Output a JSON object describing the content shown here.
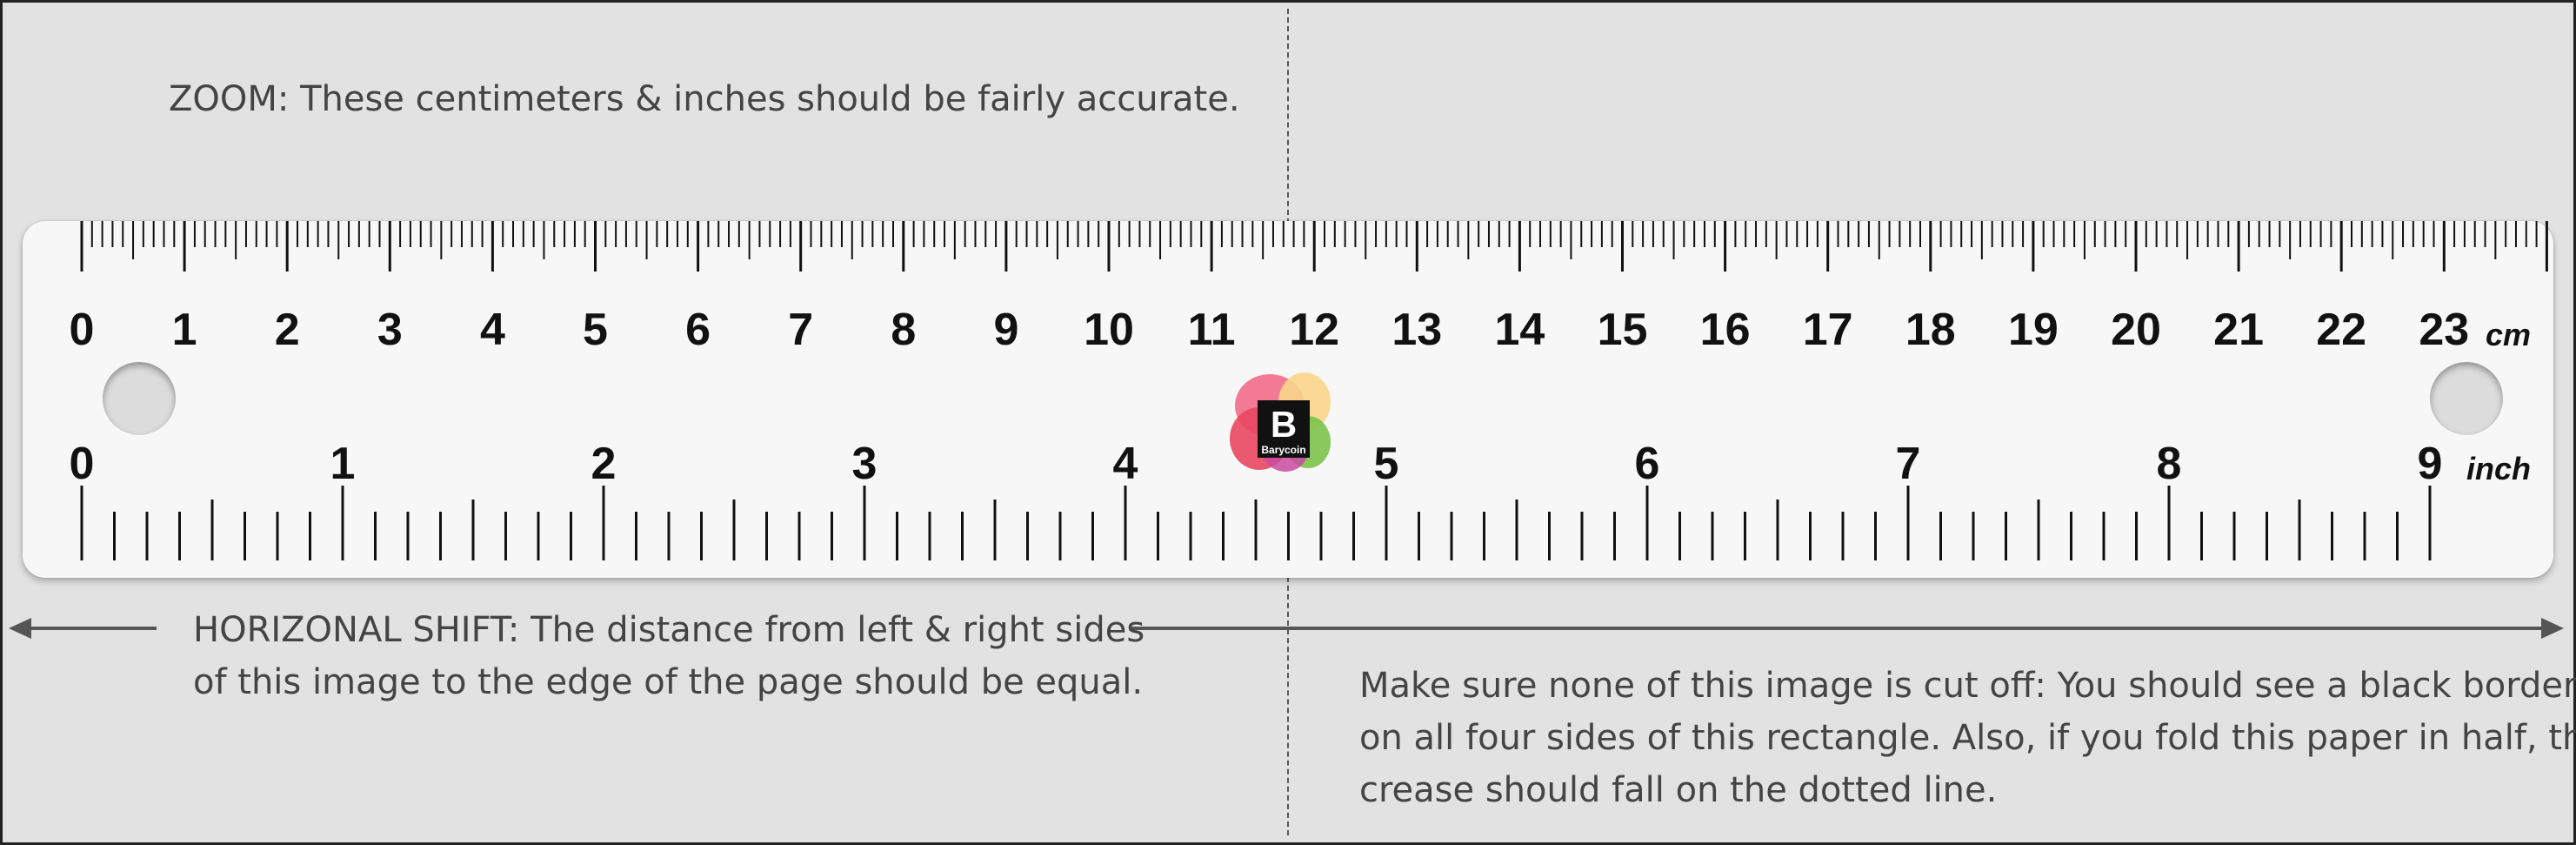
{
  "notes": {
    "zoom_label": "ZOOM:",
    "zoom_text": " These centimeters & inches should be fairly accurate.",
    "shift_label": "HORIZONAL SHIFT:",
    "shift_line1_text": " The distance from left & right sides",
    "shift_line2": "of this image to the edge of the page should be equal.",
    "make_line1": "Make sure none of this image is cut off: You should see a black border",
    "make_line2": "on all four sides of this rectangle. Also, if you fold this paper in half, the",
    "make_line3": "crease should fall on the dotted line."
  },
  "ruler": {
    "cm_labels": [
      "0",
      "1",
      "2",
      "3",
      "4",
      "5",
      "6",
      "7",
      "8",
      "9",
      "10",
      "11",
      "12",
      "13",
      "14",
      "15",
      "16",
      "17",
      "18",
      "19",
      "20",
      "21",
      "22",
      "23"
    ],
    "inch_labels": [
      "0",
      "1",
      "2",
      "3",
      "4",
      "5",
      "6",
      "7",
      "8",
      "9"
    ],
    "cm_unit": "cm",
    "inch_unit": "inch"
  },
  "logo": {
    "text": "Barycoin",
    "letter": "B"
  },
  "colors": {
    "background": "#e2e2e2",
    "ruler": "#f7f7f7",
    "ink": "#111111",
    "note_text": "#444444"
  }
}
